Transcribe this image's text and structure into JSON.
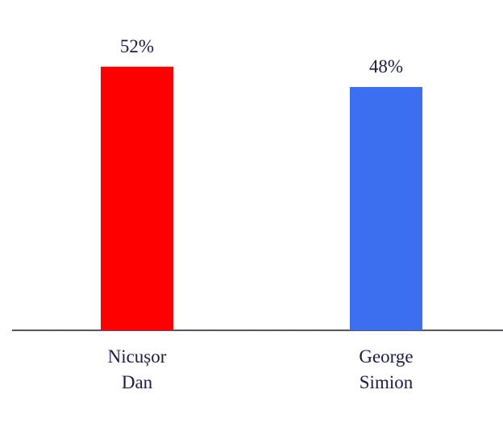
{
  "chart_data": {
    "type": "bar",
    "categories": [
      "Nicușor Dan",
      "George Simion"
    ],
    "values": [
      52,
      48
    ],
    "value_labels": [
      "52%",
      "48%"
    ],
    "colors": [
      "#ff0000",
      "#3b6ff0"
    ],
    "ylim": [
      0,
      65
    ]
  }
}
